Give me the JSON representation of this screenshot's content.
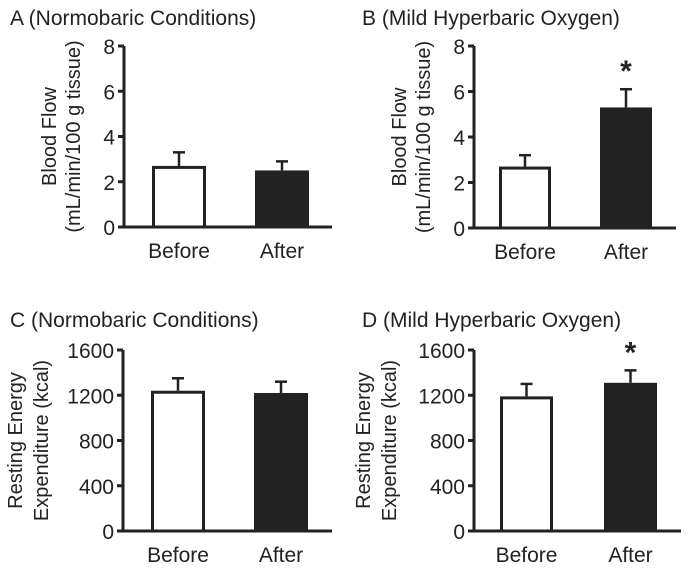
{
  "chart_data": [
    {
      "panel": "A",
      "type": "bar",
      "title": "A (Normobaric Conditions)",
      "ylabel": [
        "Blood Flow",
        "(mL/min/100 g tissue)"
      ],
      "xlabel": "",
      "ylim": [
        0,
        8
      ],
      "yticks": [
        0,
        2,
        4,
        6,
        8
      ],
      "ytick_labels": [
        "0",
        "2",
        "4",
        "6",
        "8"
      ],
      "categories": [
        "Before",
        "After"
      ],
      "values": [
        2.7,
        2.5
      ],
      "error_upper": [
        3.3,
        2.9
      ],
      "bar_colors": [
        "#ffffff",
        "#222222"
      ],
      "significance": [
        "",
        ""
      ],
      "grid": false
    },
    {
      "panel": "B",
      "type": "bar",
      "title": "B (Mild Hyperbaric Oxygen)",
      "ylabel": [
        "Blood Flow",
        "(mL/min/100 g tissue)"
      ],
      "xlabel": "",
      "ylim": [
        0,
        8
      ],
      "yticks": [
        0,
        2,
        4,
        6,
        8
      ],
      "ytick_labels": [
        "0",
        "2",
        "4",
        "6",
        "8"
      ],
      "categories": [
        "Before",
        "After"
      ],
      "values": [
        2.7,
        5.3
      ],
      "error_upper": [
        3.2,
        6.1
      ],
      "bar_colors": [
        "#ffffff",
        "#222222"
      ],
      "significance": [
        "",
        "*"
      ],
      "grid": false
    },
    {
      "panel": "C",
      "type": "bar",
      "title": "C (Normobaric Conditions)",
      "ylabel": [
        "Resting Energy",
        "Expenditure (kcal)"
      ],
      "xlabel": "",
      "ylim": [
        0,
        1600
      ],
      "yticks": [
        0,
        400,
        800,
        1200,
        1600
      ],
      "ytick_labels": [
        "0",
        "400",
        "800",
        "1200",
        "1600"
      ],
      "categories": [
        "Before",
        "After"
      ],
      "values": [
        1240,
        1220
      ],
      "error_upper": [
        1350,
        1320
      ],
      "bar_colors": [
        "#ffffff",
        "#222222"
      ],
      "significance": [
        "",
        ""
      ],
      "grid": false
    },
    {
      "panel": "D",
      "type": "bar",
      "title": "D (Mild Hyperbaric Oxygen)",
      "ylabel": [
        "Resting Energy",
        "Expenditure (kcal)"
      ],
      "xlabel": "",
      "ylim": [
        0,
        1600
      ],
      "yticks": [
        0,
        400,
        800,
        1200,
        1600
      ],
      "ytick_labels": [
        "0",
        "400",
        "800",
        "1200",
        "1600"
      ],
      "categories": [
        "Before",
        "After"
      ],
      "values": [
        1190,
        1310
      ],
      "error_upper": [
        1300,
        1420
      ],
      "bar_colors": [
        "#ffffff",
        "#222222"
      ],
      "significance": [
        "",
        "*"
      ],
      "grid": false
    }
  ]
}
